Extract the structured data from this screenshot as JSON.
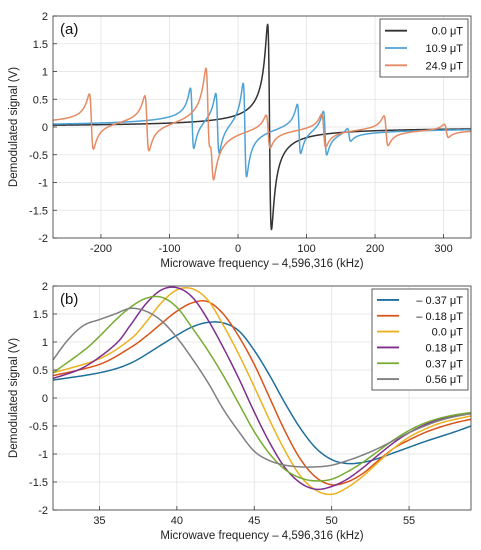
{
  "chart_data": [
    {
      "type": "line",
      "panel_label": "(a)",
      "xlabel": "Microwave frequency – 4,596,316 (kHz)",
      "ylabel": "Demodulated signal (V)",
      "xlim": [
        -270,
        340
      ],
      "ylim": [
        -2,
        2
      ],
      "xticks": [
        -200,
        -100,
        0,
        100,
        200,
        300
      ],
      "xtick_labels": [
        "-200",
        "-100",
        "0",
        "100",
        "200",
        "300"
      ],
      "yticks": [
        -2,
        -1.5,
        -1,
        -0.5,
        0,
        0.5,
        1,
        1.5,
        2
      ],
      "ytick_labels": [
        "-2",
        "-1.5",
        "-1",
        "-0.5",
        "0",
        "0.5",
        "1",
        "1.5",
        "2"
      ],
      "grid": true,
      "legend_position": "top-right",
      "series": [
        {
          "name": "0.0 μT",
          "color": "#333333",
          "resonances": [
            {
              "center": 46,
              "amplitude": 1.85,
              "width": 2.8
            }
          ]
        },
        {
          "name": "10.9 μT",
          "color": "#4da3d6",
          "resonances": [
            {
              "center": -67,
              "amplitude": 0.55,
              "width": 2.5
            },
            {
              "center": -30,
              "amplitude": 0.55,
              "width": 2.5
            },
            {
              "center": 10,
              "amplitude": 0.85,
              "width": 2.5
            },
            {
              "center": 89,
              "amplitude": 0.45,
              "width": 2.5
            },
            {
              "center": 127,
              "amplitude": 0.4,
              "width": 2.5
            },
            {
              "center": 162,
              "amplitude": 0.12,
              "width": 2.5
            }
          ]
        },
        {
          "name": "24.9 μT",
          "color": "#e58a64",
          "resonances": [
            {
              "center": -214,
              "amplitude": 0.5,
              "width": 3
            },
            {
              "center": -133,
              "amplitude": 0.5,
              "width": 3
            },
            {
              "center": -44,
              "amplitude": 0.8,
              "width": 3
            },
            {
              "center": -38,
              "amplitude": 0.45,
              "width": 3
            },
            {
              "center": 44,
              "amplitude": 0.3,
              "width": 3
            },
            {
              "center": 125,
              "amplitude": 0.3,
              "width": 3
            },
            {
              "center": 216,
              "amplitude": 0.27,
              "width": 3
            },
            {
              "center": 304,
              "amplitude": 0.12,
              "width": 3
            }
          ]
        }
      ]
    },
    {
      "type": "line",
      "panel_label": "(b)",
      "xlabel": "Microwave frequency – 4,596,316 (kHz)",
      "ylabel": "Demodulated signal (V)",
      "xlim": [
        32,
        59
      ],
      "ylim": [
        -2,
        2
      ],
      "xticks": [
        35,
        40,
        45,
        50,
        55
      ],
      "xtick_labels": [
        "35",
        "40",
        "45",
        "50",
        "55"
      ],
      "yticks": [
        -2,
        -1.5,
        -1,
        -0.5,
        0,
        0.5,
        1,
        1.5,
        2
      ],
      "ytick_labels": [
        "-2",
        "-1.5",
        "-1",
        "-0.5",
        "0",
        "0.5",
        "1",
        "1.5",
        "2"
      ],
      "grid": true,
      "legend_position": "top-right",
      "series": [
        {
          "name": "– 0.37 μT",
          "color": "#1f6f9c",
          "x": [
            32,
            35,
            37,
            39,
            40,
            41,
            42,
            43,
            44,
            45,
            46,
            47,
            48,
            49,
            50,
            51,
            52,
            53,
            54,
            55,
            56,
            57,
            58,
            59
          ],
          "y": [
            0.32,
            0.45,
            0.62,
            0.95,
            1.12,
            1.27,
            1.35,
            1.34,
            1.2,
            0.85,
            0.4,
            -0.1,
            -0.55,
            -0.9,
            -1.1,
            -1.17,
            -1.15,
            -1.08,
            -0.98,
            -0.88,
            -0.78,
            -0.69,
            -0.6,
            -0.5
          ]
        },
        {
          "name": "– 0.18 μT",
          "color": "#d9541a",
          "x": [
            32,
            35,
            37,
            38,
            39,
            40,
            41,
            42,
            43,
            44,
            45,
            46,
            47,
            48,
            49,
            50,
            51,
            52,
            53,
            54,
            55,
            56,
            57,
            58,
            59
          ],
          "y": [
            0.4,
            0.6,
            0.9,
            1.1,
            1.33,
            1.55,
            1.7,
            1.72,
            1.5,
            1.1,
            0.6,
            0.0,
            -0.6,
            -1.1,
            -1.42,
            -1.55,
            -1.5,
            -1.35,
            -1.12,
            -0.9,
            -0.75,
            -0.62,
            -0.52,
            -0.44,
            -0.38
          ]
        },
        {
          "name": "0.0 μT",
          "color": "#edb120",
          "x": [
            32,
            35,
            37,
            38,
            39,
            40,
            41,
            42,
            43,
            44,
            45,
            46,
            47,
            48,
            49,
            50,
            51,
            52,
            53,
            54,
            55,
            56,
            57,
            58,
            59
          ],
          "y": [
            0.45,
            0.7,
            1.05,
            1.35,
            1.7,
            1.93,
            1.95,
            1.75,
            1.3,
            0.78,
            0.2,
            -0.4,
            -0.95,
            -1.4,
            -1.65,
            -1.72,
            -1.6,
            -1.4,
            -1.15,
            -0.9,
            -0.7,
            -0.56,
            -0.45,
            -0.38,
            -0.32
          ]
        },
        {
          "name": "0.18 μT",
          "color": "#7e2f8e",
          "x": [
            32,
            34,
            36,
            37,
            38,
            39,
            40,
            41,
            42,
            43,
            44,
            45,
            46,
            47,
            48,
            49,
            50,
            51,
            52,
            53,
            54,
            55,
            56,
            57,
            58,
            59
          ],
          "y": [
            0.35,
            0.55,
            0.95,
            1.3,
            1.68,
            1.93,
            1.97,
            1.8,
            1.4,
            0.9,
            0.35,
            -0.25,
            -0.8,
            -1.25,
            -1.52,
            -1.63,
            -1.58,
            -1.45,
            -1.25,
            -1.02,
            -0.8,
            -0.62,
            -0.48,
            -0.38,
            -0.31,
            -0.27
          ]
        },
        {
          "name": "0.37 μT",
          "color": "#77ac30",
          "x": [
            32,
            34,
            35,
            36,
            37,
            38,
            39,
            40,
            41,
            42,
            43,
            44,
            45,
            46,
            47,
            48,
            49,
            50,
            51,
            52,
            53,
            54,
            55,
            56,
            57,
            58,
            59
          ],
          "y": [
            0.45,
            0.85,
            1.1,
            1.38,
            1.62,
            1.78,
            1.8,
            1.62,
            1.25,
            0.85,
            0.4,
            -0.1,
            -0.6,
            -1.0,
            -1.28,
            -1.43,
            -1.48,
            -1.45,
            -1.32,
            -1.15,
            -0.95,
            -0.75,
            -0.58,
            -0.45,
            -0.36,
            -0.3,
            -0.26
          ]
        },
        {
          "name": "0.56 μT",
          "color": "#808080",
          "x": [
            32,
            33,
            34,
            35,
            36,
            37,
            38,
            39,
            40,
            41,
            42,
            43,
            44,
            45,
            46,
            47,
            48,
            49,
            50,
            51,
            52,
            53,
            54,
            55,
            56,
            57,
            58,
            59
          ],
          "y": [
            0.68,
            1.05,
            1.3,
            1.4,
            1.5,
            1.6,
            1.55,
            1.38,
            1.08,
            0.7,
            0.28,
            -0.2,
            -0.6,
            -0.95,
            -1.12,
            -1.2,
            -1.23,
            -1.23,
            -1.2,
            -1.12,
            -1.02,
            -0.9,
            -0.76,
            -0.62,
            -0.5,
            -0.4,
            -0.33,
            -0.28
          ]
        }
      ]
    }
  ]
}
